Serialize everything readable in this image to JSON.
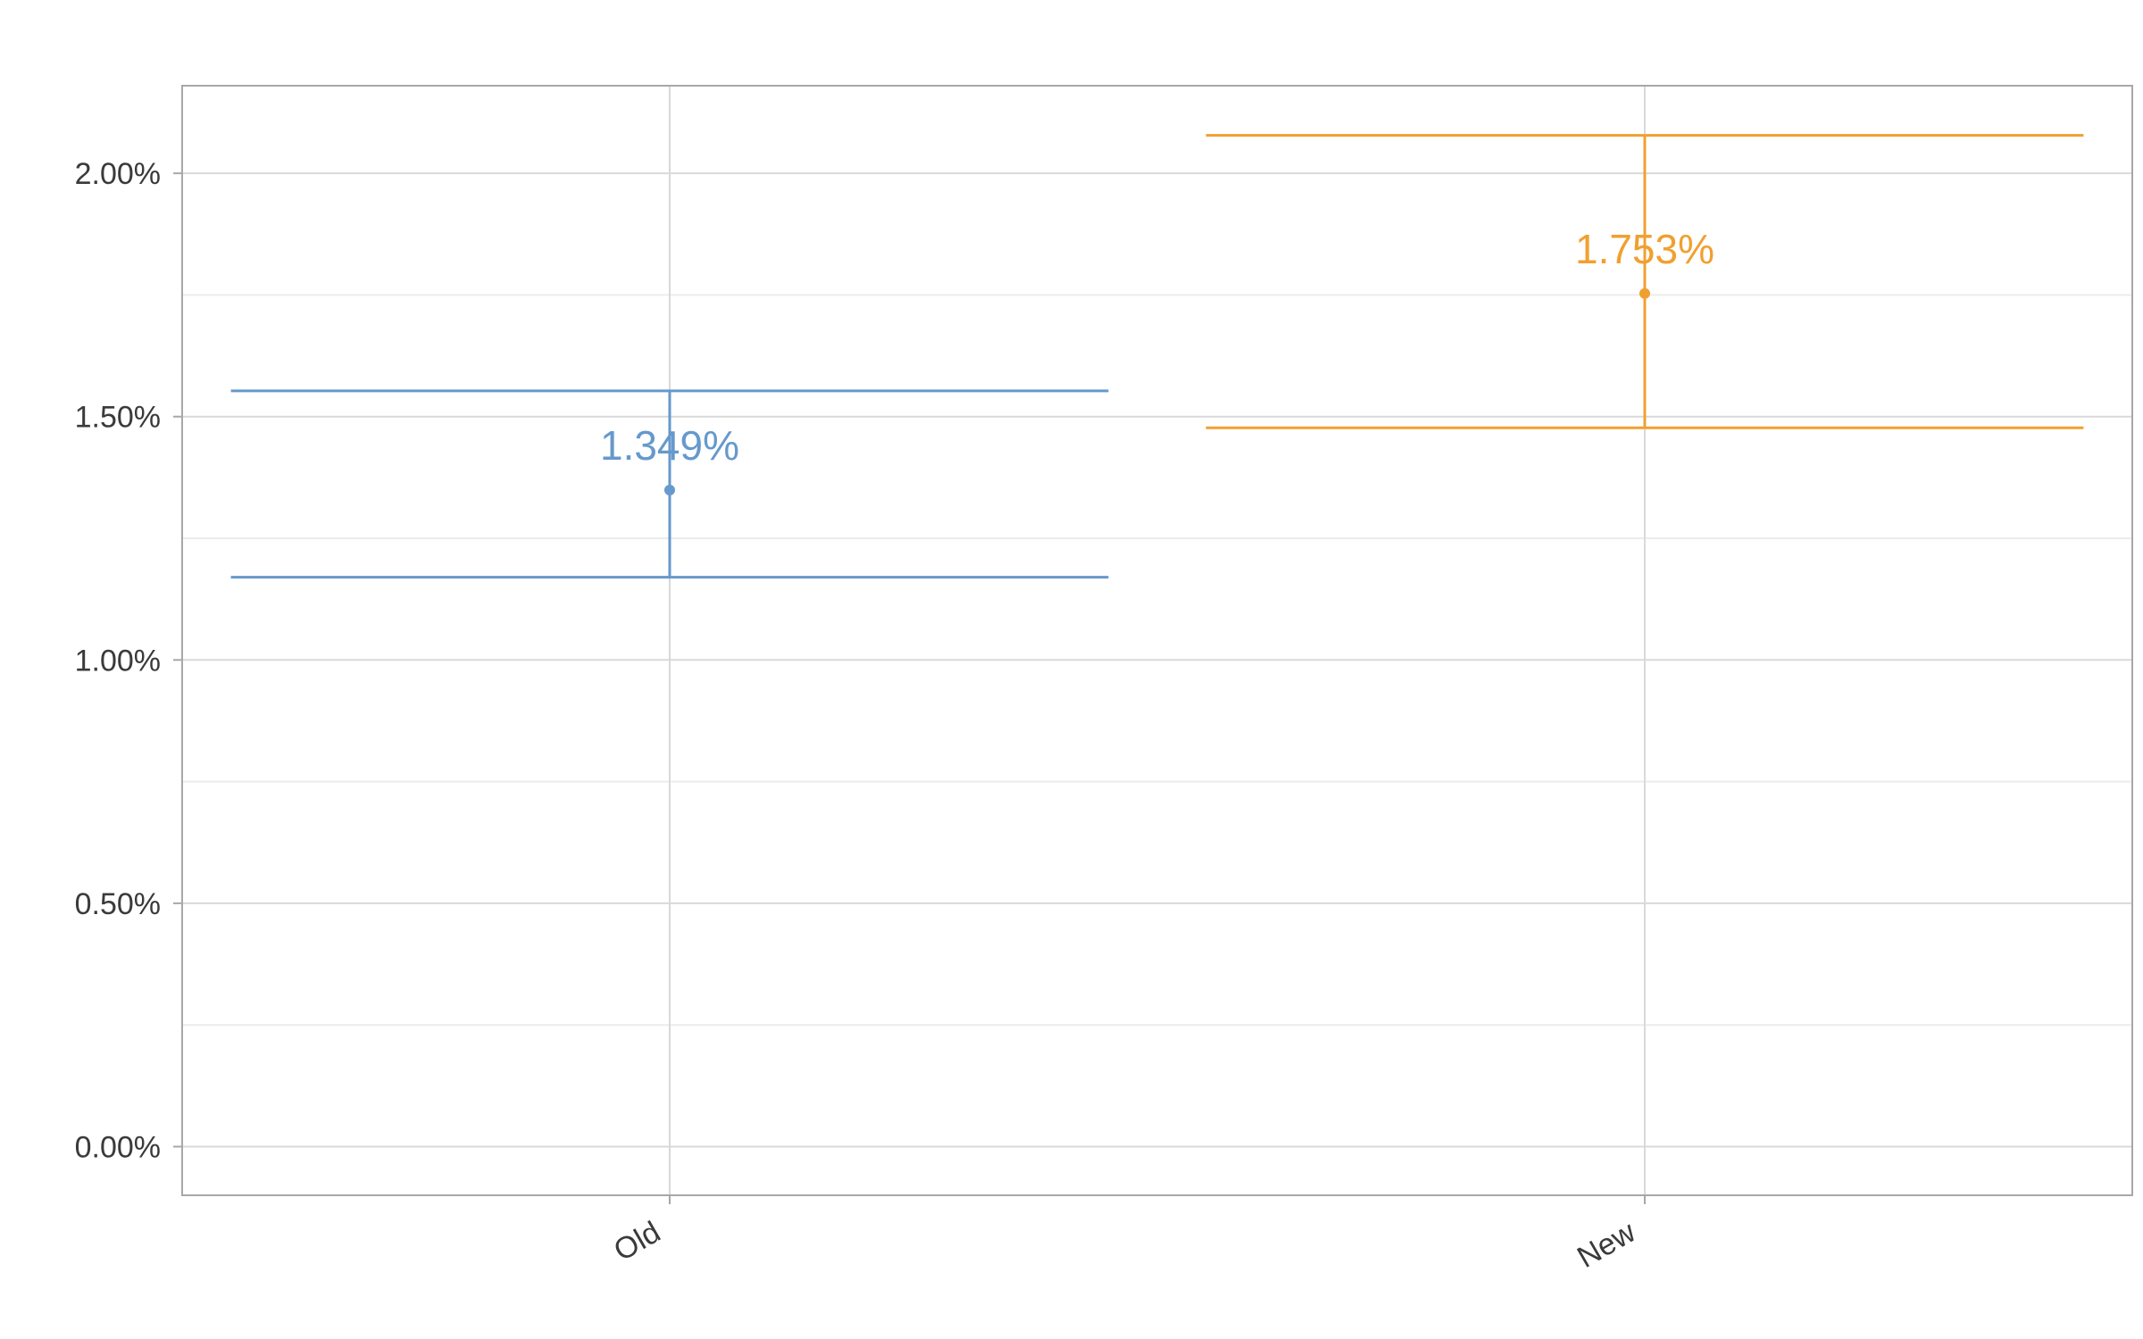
{
  "chart_data": {
    "type": "errorbar",
    "title": "",
    "xlabel": "",
    "ylabel": "",
    "categories": [
      "Old",
      "New"
    ],
    "ylim": [
      -0.1,
      2.18
    ],
    "yticks": [
      0,
      0.5,
      1.0,
      1.5,
      2.0
    ],
    "ytick_labels": [
      "0.00%",
      "0.50%",
      "1.00%",
      "1.50%",
      "2.00%"
    ],
    "grid": true,
    "legend": "none",
    "points": [
      {
        "category": "Old",
        "value": 1.349,
        "lower": 1.17,
        "upper": 1.553,
        "label": "1.349%",
        "color": "#6699cc"
      },
      {
        "category": "New",
        "value": 1.753,
        "lower": 1.477,
        "upper": 2.078,
        "label": "1.753%",
        "color": "#f0a030"
      }
    ]
  }
}
